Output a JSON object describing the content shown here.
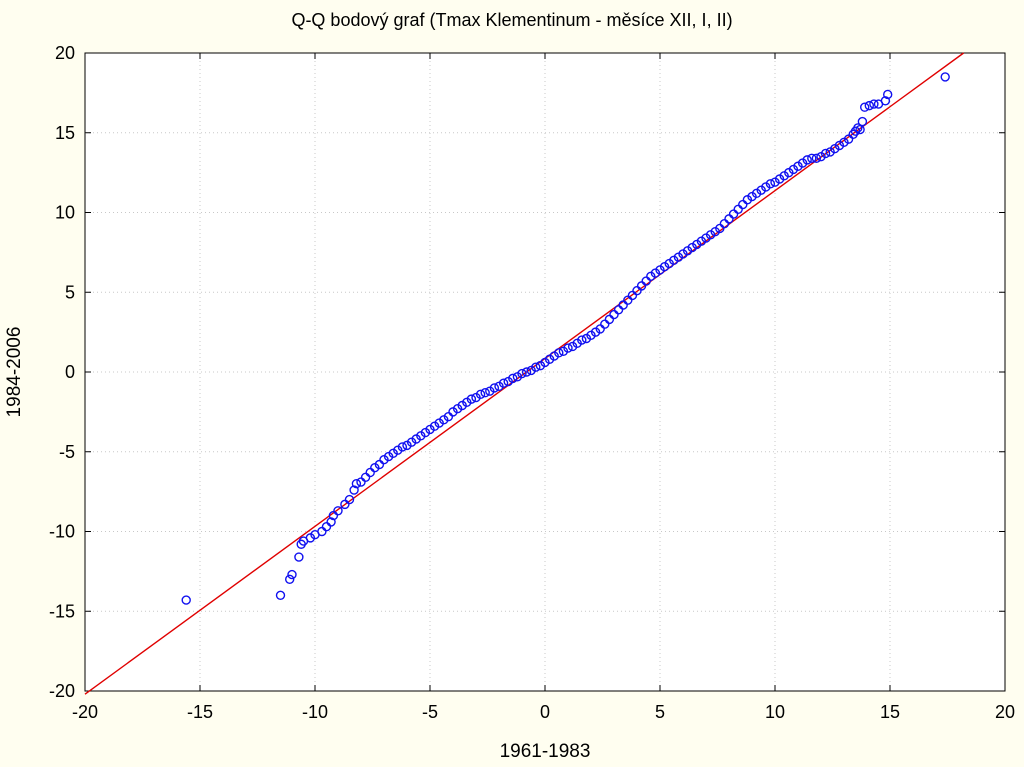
{
  "chart_data": {
    "type": "scatter",
    "title": "Q-Q bodový graf (Tmax Klementinum - měsíce XII, I, II)",
    "xlabel": "1961-1983",
    "ylabel": "1984-2006",
    "xlim": [
      -20,
      20
    ],
    "ylim": [
      -20,
      20
    ],
    "xticks": [
      -20,
      -15,
      -10,
      -5,
      0,
      5,
      10,
      15,
      20
    ],
    "yticks": [
      -20,
      -15,
      -10,
      -5,
      0,
      5,
      10,
      15,
      20
    ],
    "xtick_labels": [
      "-20",
      "-15",
      "-10",
      "-5",
      "0",
      "5",
      "10",
      "15",
      "20"
    ],
    "ytick_labels": [
      "-20",
      "-15",
      "-10",
      "-5",
      "0",
      "5",
      "10",
      "15",
      "20"
    ],
    "grid": true,
    "reference_line": {
      "x": [
        -20,
        18.2
      ],
      "y": [
        -20.2,
        20
      ]
    },
    "colors": {
      "points": "#1010F0",
      "reference_line": "#E00000",
      "background": "#FFFEF0"
    },
    "points": {
      "x": [
        -15.6,
        -11.5,
        -11.1,
        -11.0,
        -10.7,
        -10.6,
        -10.5,
        -10.2,
        -10.0,
        -9.7,
        -9.5,
        -9.3,
        -9.2,
        -9.0,
        -8.7,
        -8.5,
        -8.3,
        -8.2,
        -8.0,
        -7.8,
        -7.6,
        -7.4,
        -7.2,
        -7.0,
        -6.8,
        -6.6,
        -6.4,
        -6.2,
        -6.0,
        -5.8,
        -5.6,
        -5.4,
        -5.2,
        -5.0,
        -4.8,
        -4.6,
        -4.4,
        -4.2,
        -4.0,
        -3.8,
        -3.6,
        -3.4,
        -3.2,
        -3.0,
        -2.8,
        -2.6,
        -2.4,
        -2.2,
        -2.0,
        -1.8,
        -1.6,
        -1.4,
        -1.2,
        -1.0,
        -0.8,
        -0.6,
        -0.4,
        -0.2,
        0.0,
        0.2,
        0.4,
        0.6,
        0.8,
        1.0,
        1.2,
        1.4,
        1.6,
        1.8,
        2.0,
        2.2,
        2.4,
        2.6,
        2.8,
        3.0,
        3.2,
        3.4,
        3.6,
        3.8,
        4.0,
        4.2,
        4.4,
        4.6,
        4.8,
        5.0,
        5.2,
        5.4,
        5.6,
        5.8,
        6.0,
        6.2,
        6.4,
        6.6,
        6.8,
        7.0,
        7.2,
        7.4,
        7.6,
        7.8,
        8.0,
        8.2,
        8.4,
        8.6,
        8.8,
        9.0,
        9.2,
        9.4,
        9.6,
        9.8,
        10.0,
        10.2,
        10.4,
        10.6,
        10.8,
        11.0,
        11.2,
        11.4,
        11.6,
        11.8,
        12.0,
        12.2,
        12.4,
        12.6,
        12.8,
        13.0,
        13.2,
        13.4,
        13.5,
        13.6,
        13.7,
        13.8,
        13.9,
        14.1,
        14.3,
        14.5,
        14.8,
        14.9,
        17.4
      ],
      "y": [
        -14.3,
        -14.0,
        -13.0,
        -12.7,
        -11.6,
        -10.8,
        -10.6,
        -10.4,
        -10.2,
        -10.0,
        -9.7,
        -9.4,
        -9.0,
        -8.7,
        -8.3,
        -8.0,
        -7.4,
        -7.0,
        -6.9,
        -6.6,
        -6.3,
        -6.0,
        -5.8,
        -5.5,
        -5.3,
        -5.1,
        -4.9,
        -4.7,
        -4.6,
        -4.4,
        -4.2,
        -4.0,
        -3.8,
        -3.6,
        -3.4,
        -3.2,
        -3.0,
        -2.8,
        -2.5,
        -2.3,
        -2.1,
        -1.9,
        -1.7,
        -1.6,
        -1.4,
        -1.3,
        -1.2,
        -1.0,
        -0.9,
        -0.7,
        -0.6,
        -0.4,
        -0.3,
        -0.1,
        0.0,
        0.1,
        0.3,
        0.4,
        0.6,
        0.8,
        1.0,
        1.2,
        1.3,
        1.5,
        1.6,
        1.8,
        2.0,
        2.1,
        2.3,
        2.5,
        2.7,
        3.0,
        3.3,
        3.6,
        3.9,
        4.2,
        4.5,
        4.8,
        5.1,
        5.4,
        5.7,
        6.0,
        6.2,
        6.4,
        6.6,
        6.8,
        7.0,
        7.2,
        7.4,
        7.6,
        7.8,
        8.0,
        8.2,
        8.4,
        8.6,
        8.8,
        9.0,
        9.3,
        9.6,
        9.9,
        10.2,
        10.5,
        10.8,
        11.0,
        11.2,
        11.4,
        11.6,
        11.8,
        11.9,
        12.1,
        12.3,
        12.5,
        12.7,
        12.9,
        13.1,
        13.3,
        13.4,
        13.4,
        13.5,
        13.7,
        13.8,
        14.0,
        14.2,
        14.4,
        14.6,
        14.9,
        15.1,
        15.3,
        15.2,
        15.7,
        16.6,
        16.7,
        16.8,
        16.8,
        17.0,
        17.4,
        18.5
      ]
    }
  }
}
